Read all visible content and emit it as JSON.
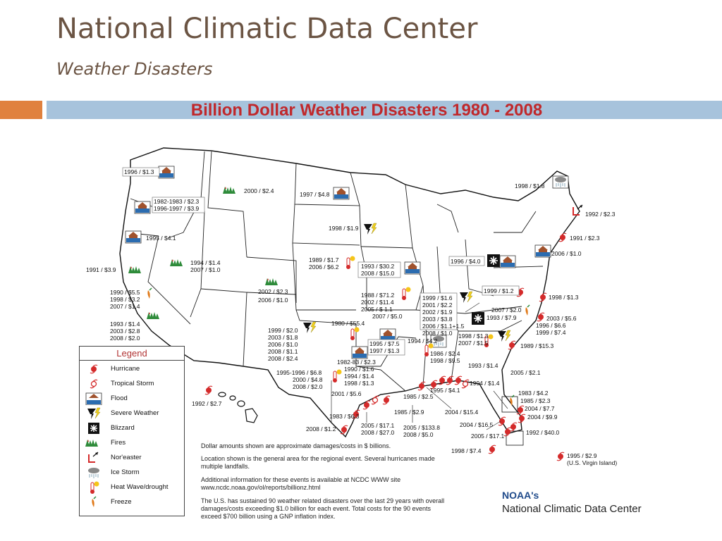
{
  "slide": {
    "title": "National Climatic Data Center",
    "subtitle": "Weather Disasters"
  },
  "map": {
    "title": "Billion Dollar Weather Disasters 1980 - 2008",
    "labels": [
      {
        "text": "1996 / $1.3",
        "type": "flood"
      },
      {
        "text": "2000 / $2.4",
        "type": "fires"
      },
      {
        "text": "1997 / $4.8",
        "type": "flood"
      },
      {
        "text": "1982-1983 / $2.3",
        "type": "flood"
      },
      {
        "text": "1996-1997 / $3.9",
        "type": "flood"
      },
      {
        "text": "1995 / $4.1",
        "type": "flood"
      },
      {
        "text": "1991 / $3.9",
        "type": "fires"
      },
      {
        "text": "1994 / $1.4",
        "type": "fires"
      },
      {
        "text": "2007 / $1.0",
        "type": "fires"
      },
      {
        "text": "1990 / $5.5",
        "type": "freeze"
      },
      {
        "text": "1998 / $3.2",
        "type": "freeze"
      },
      {
        "text": "2007 / $1.4",
        "type": "freeze"
      },
      {
        "text": "1993 / $1.4",
        "type": "fires"
      },
      {
        "text": "2003 / $2.8",
        "type": "fires"
      },
      {
        "text": "2008 / $2.0",
        "type": "fires"
      },
      {
        "text": "1998 / $1.9",
        "type": "severe_weather"
      },
      {
        "text": "1989 / $1.7",
        "type": "heat_wave"
      },
      {
        "text": "2006 / $6.2",
        "type": "heat_wave"
      },
      {
        "text": "1993 / $30.2",
        "type": "flood"
      },
      {
        "text": "2008 / $15.0",
        "type": "flood"
      },
      {
        "text": "2002 / $2.3",
        "type": "fires"
      },
      {
        "text": "2006 / $1.0",
        "type": "fires"
      },
      {
        "text": "1988 / $71.2",
        "type": "heat_wave"
      },
      {
        "text": "2002 / $11.4",
        "type": "heat_wave"
      },
      {
        "text": "2005 / $ 1.1",
        "type": "heat_wave"
      },
      {
        "text": "2007 / $5.0",
        "type": "heat_wave"
      },
      {
        "text": "1999 / $2.0",
        "type": "severe_weather"
      },
      {
        "text": "2003 / $1.8",
        "type": "severe_weather"
      },
      {
        "text": "2006 / $1.0",
        "type": "severe_weather"
      },
      {
        "text": "2008 / $1.1",
        "type": "severe_weather"
      },
      {
        "text": "2008 / $2.4",
        "type": "severe_weather"
      },
      {
        "text": "1980 / $55.4",
        "type": "heat_wave"
      },
      {
        "text": "1995 / $7.5",
        "type": "flood"
      },
      {
        "text": "1997 / $1.3",
        "type": "flood"
      },
      {
        "text": "1982-83 / $2.3",
        "type": "flood"
      },
      {
        "text": "1990 / $1.6",
        "type": "flood"
      },
      {
        "text": "1994 / $1.4",
        "type": "flood"
      },
      {
        "text": "1998 / $1.3",
        "type": "flood"
      },
      {
        "text": "1995-1996 / $6.8",
        "type": "heat_wave"
      },
      {
        "text": "2000 / $4.8",
        "type": "heat_wave"
      },
      {
        "text": "2008 / $2.0",
        "type": "heat_wave"
      },
      {
        "text": "1996 / $4.0",
        "type": "blizzard"
      },
      {
        "text": "1999 / $1.6",
        "type": "severe_weather"
      },
      {
        "text": "2001 / $2.2",
        "type": "severe_weather"
      },
      {
        "text": "2002 / $1.9",
        "type": "severe_weather"
      },
      {
        "text": "2003 / $3.8",
        "type": "severe_weather"
      },
      {
        "text": "2006 / $1.1+1.5",
        "type": "severe_weather"
      },
      {
        "text": "2008 / $1.0",
        "type": "severe_weather"
      },
      {
        "text": "1999 / $1.2",
        "type": "hurricane"
      },
      {
        "text": "2007 / $2.0",
        "type": "freeze"
      },
      {
        "text": "1993 / $7.9",
        "type": "blizzard"
      },
      {
        "text": "1998 / $1.8",
        "type": "ice_storm"
      },
      {
        "text": "1992 / $2.3",
        "type": "noreaster"
      },
      {
        "text": "1991 / $2.3",
        "type": "hurricane"
      },
      {
        "text": "2006 / $1.0",
        "type": "flood"
      },
      {
        "text": "1998 / $1.3",
        "type": "hurricane"
      },
      {
        "text": "2003 / $5.6",
        "type": "hurricane"
      },
      {
        "text": "1996 / $6.6",
        "type": "hurricane"
      },
      {
        "text": "1999 / $7.4",
        "type": "hurricane"
      },
      {
        "text": "1989 / $15.3",
        "type": "hurricane"
      },
      {
        "text": "1998 / $1.3",
        "type": "ice_storm"
      },
      {
        "text": "2007 / $1.5",
        "type": "ice_storm"
      },
      {
        "text": "1994 / $4.2",
        "type": "ice_storm"
      },
      {
        "text": "1986 / $2.4",
        "type": "heat_wave"
      },
      {
        "text": "1998 / $9.5",
        "type": "heat_wave"
      },
      {
        "text": "1993 / $1.4",
        "type": "blizzard"
      },
      {
        "text": "2005 / $2.1",
        "type": "hurricane"
      },
      {
        "text": "1994 / $1.4",
        "type": "tropical_storm"
      },
      {
        "text": "1995 / $4.1",
        "type": "hurricane"
      },
      {
        "text": "2001 / $5.6",
        "type": "tropical_storm"
      },
      {
        "text": "1985 / $2.5",
        "type": "hurricane"
      },
      {
        "text": "1985 / $2.9",
        "type": "hurricane"
      },
      {
        "text": "2004 / $15.4",
        "type": "hurricane"
      },
      {
        "text": "1983 / $6.3",
        "type": "hurricane"
      },
      {
        "text": "2008 / $1.2",
        "type": "hurricane"
      },
      {
        "text": "2005 / $17.1",
        "type": "hurricane"
      },
      {
        "text": "2008 / $27.0",
        "type": "hurricane"
      },
      {
        "text": "2005 / $133.8",
        "type": "hurricane"
      },
      {
        "text": "2008 / $5.0",
        "type": "hurricane"
      },
      {
        "text": "1983 / $4.2",
        "type": "freeze"
      },
      {
        "text": "1985 / $2.3",
        "type": "freeze"
      },
      {
        "text": "2004 / $7.7",
        "type": "hurricane"
      },
      {
        "text": "2004 / $9.9",
        "type": "hurricane"
      },
      {
        "text": "2004 / $16.5",
        "type": "hurricane"
      },
      {
        "text": "1992 / $40.0",
        "type": "hurricane"
      },
      {
        "text": "2005 / $17.1",
        "type": "hurricane"
      },
      {
        "text": "1998 / $7.4",
        "type": "hurricane"
      },
      {
        "text": "1992 / $2.7",
        "type": "hurricane"
      },
      {
        "text": "1995 / $2.9",
        "type": "hurricane"
      },
      {
        "text": "(U.S. Virgin Island)",
        "type": "hurricane"
      }
    ]
  },
  "legend": {
    "title": "Legend",
    "items": [
      {
        "label": "Hurricane",
        "icon": "hurricane-icon"
      },
      {
        "label": "Tropical Storm",
        "icon": "tropical-storm-icon"
      },
      {
        "label": "Flood",
        "icon": "flood-icon"
      },
      {
        "label": "Severe Weather",
        "icon": "severe-weather-icon"
      },
      {
        "label": "Blizzard",
        "icon": "blizzard-icon"
      },
      {
        "label": "Fires",
        "icon": "fires-icon"
      },
      {
        "label": "Nor'easter",
        "icon": "noreaster-icon"
      },
      {
        "label": "Ice Storm",
        "icon": "ice-storm-icon"
      },
      {
        "label": "Heat Wave/drought",
        "icon": "heat-wave-icon"
      },
      {
        "label": "Freeze",
        "icon": "freeze-icon"
      }
    ]
  },
  "notes": {
    "note1": "Dollar amounts shown are approximate damages/costs in $ billions.",
    "note2": "Location shown is the general area for the regional event. Several hurricanes made multiple landfalls.",
    "note3": "Additional information for these events is available at NCDC WWW site www.ncdc.noaa.gov/ol/reports/billionz.html",
    "note4": "The U.S. has sustained 90 weather related disasters over the last 29 years with overall damages/costs exceeding $1.0 billion for each event. Total costs for the 90 events exceed $700 billion using a GNP inflation index."
  },
  "branding": {
    "noaa": "NOAA's",
    "ncdc": "National Climatic Data Center"
  },
  "colors": {
    "title": "#6b5443",
    "map_title": "#c0282b",
    "accent_orange": "#e0813e",
    "accent_blue": "#a7c3dc",
    "hurricane_red": "#d42a2a",
    "fire_green": "#2e8b3a",
    "flood_blue": "#2b6cb0",
    "severe_yellow": "#f0d020"
  }
}
